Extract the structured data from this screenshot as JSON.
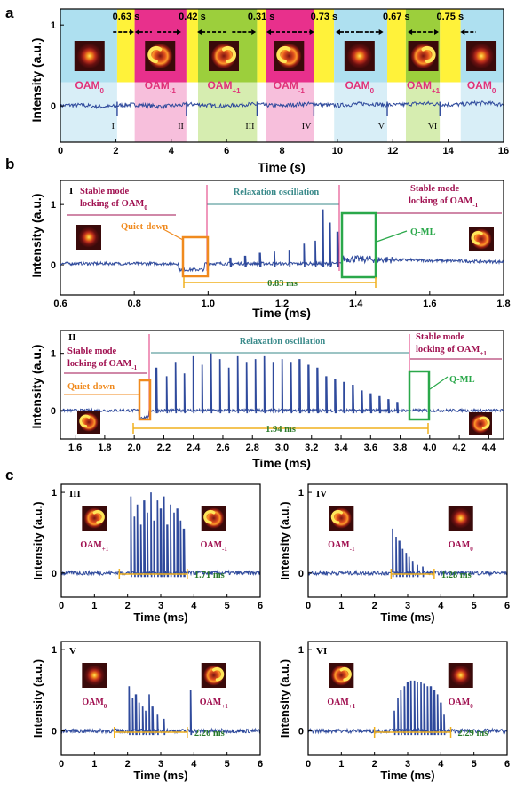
{
  "colors": {
    "trace": "#2f4a9c",
    "sky": "#aee0f0",
    "magenta": "#e8308c",
    "pink": "#f7bfdc",
    "yellow": "#fff23a",
    "green": "#9ccf3c",
    "lightgreen": "#d6edb0",
    "orange": "#f08a1e",
    "q_ml_box": "#2aa84a",
    "teal": "#3a8a8a",
    "magenta_text": "#a01050"
  },
  "panel_a": {
    "label": "a",
    "xlabel": "Time (s)",
    "ylabel": "Intensity (a.u.)",
    "x_ticks": [
      "0",
      "2",
      "4",
      "6",
      "8",
      "10",
      "12",
      "14",
      "16"
    ],
    "y_ticks": [
      "0",
      "1"
    ],
    "durations": [
      "0.63 s",
      "0.42 s",
      "0.31 s",
      "0.73 s",
      "0.67 s",
      "0.75 s"
    ],
    "transitions": [
      "I",
      "II",
      "III",
      "IV",
      "V",
      "VI"
    ],
    "modes": [
      {
        "main": "OAM",
        "sub": "0"
      },
      {
        "main": "OAM",
        "sub": "-1"
      },
      {
        "main": "OAM",
        "sub": "+1"
      },
      {
        "main": "OAM",
        "sub": "-1"
      },
      {
        "main": "OAM",
        "sub": "0"
      },
      {
        "main": "OAM",
        "sub": "+1"
      },
      {
        "main": "OAM",
        "sub": "0"
      }
    ]
  },
  "panel_b": {
    "label": "b",
    "top": {
      "roman": "I",
      "xlabel": "Time (ms)",
      "ylabel": "Intensity (a.u.)",
      "x_ticks": [
        "0.6",
        "0.8",
        "1.0",
        "1.2",
        "1.4",
        "1.6",
        "1.8"
      ],
      "y_ticks": [
        "0",
        "1"
      ],
      "left_note": [
        "Stable mode",
        "locking of OAM",
        "0"
      ],
      "right_note": [
        "Stable mode",
        "locking of OAM",
        "-1"
      ],
      "relax": "Relaxation oscillation",
      "quiet": "Quiet-down",
      "qml": "Q-ML",
      "span": "0.83 ms"
    },
    "bottom": {
      "roman": "II",
      "xlabel": "Time (ms)",
      "ylabel": "Intensity (a.u.)",
      "x_ticks": [
        "1.6",
        "1.8",
        "2.0",
        "2.2",
        "2.4",
        "2.6",
        "2.8",
        "3.0",
        "3.2",
        "3.4",
        "3.6",
        "3.8",
        "4.0",
        "4.2",
        "4.4"
      ],
      "y_ticks": [
        "0",
        "1"
      ],
      "left_note": [
        "Stable mode",
        "locking of OAM",
        "-1"
      ],
      "right_note": [
        "Stable mode",
        "locking of OAM",
        "+1"
      ],
      "relax": "Relaxation oscillation",
      "quiet": "Quiet-down",
      "qml": "Q-ML",
      "span": "1.94 ms"
    }
  },
  "panel_c": {
    "label": "c",
    "xlabel": "Time (ms)",
    "ylabel": "Intensity (a.u.)",
    "x_ticks": [
      "0",
      "1",
      "2",
      "3",
      "4",
      "5",
      "6"
    ],
    "y_ticks": [
      "0",
      "1"
    ],
    "subplots": [
      {
        "roman": "III",
        "left": {
          "main": "OAM",
          "sub": "+1"
        },
        "right": {
          "main": "OAM",
          "sub": "-1"
        },
        "span": "1.71 ms"
      },
      {
        "roman": "IV",
        "left": {
          "main": "OAM",
          "sub": "-1"
        },
        "right": {
          "main": "OAM",
          "sub": "0"
        },
        "span": "1.28 ms"
      },
      {
        "roman": "V",
        "left": {
          "main": "OAM",
          "sub": "0"
        },
        "right": {
          "main": "OAM",
          "sub": "+1"
        },
        "span": "2.20 ms"
      },
      {
        "roman": "VI",
        "left": {
          "main": "OAM",
          "sub": "+1"
        },
        "right": {
          "main": "OAM",
          "sub": "0"
        },
        "span": "2.29 ms"
      }
    ]
  },
  "chart_data": [
    {
      "type": "line",
      "panel": "a",
      "xlabel": "Time (s)",
      "ylabel": "Intensity (a.u.)",
      "xlim": [
        0,
        16
      ],
      "ylim": [
        -0.5,
        1.2
      ],
      "transition_times_s": [
        2.05,
        4.55,
        7.1,
        9.15,
        11.8,
        13.7
      ],
      "series": [
        {
          "x": [
            0,
            2.05,
            2.1,
            4.55,
            4.6,
            7.1,
            7.15,
            9.15,
            9.2,
            11.8,
            11.85,
            13.7,
            13.75,
            16
          ],
          "y": [
            0,
            0,
            0.05,
            0.02,
            0.02,
            0.03,
            -0.02,
            0.04,
            0.06,
            0.0,
            0.02,
            0.03,
            0.02,
            0.02
          ]
        }
      ]
    },
    {
      "type": "line",
      "panel": "b-I",
      "xlabel": "Time (ms)",
      "ylabel": "Intensity (a.u.)",
      "xlim": [
        0.6,
        1.8
      ],
      "ylim": [
        -0.5,
        1.4
      ],
      "peaks_x": [
        1.06,
        1.1,
        1.14,
        1.18,
        1.22,
        1.26,
        1.29,
        1.31,
        1.33,
        1.35
      ],
      "peaks_y": [
        0.12,
        0.15,
        0.2,
        0.22,
        0.25,
        0.35,
        0.4,
        0.92,
        0.7,
        0.55
      ]
    },
    {
      "type": "line",
      "panel": "b-II",
      "xlabel": "Time (ms)",
      "ylabel": "Intensity (a.u.)",
      "xlim": [
        1.5,
        4.5
      ],
      "ylim": [
        -0.5,
        1.4
      ],
      "peaks_x": [
        2.15,
        2.22,
        2.28,
        2.34,
        2.4,
        2.46,
        2.52,
        2.58,
        2.64,
        2.7,
        2.76,
        2.82,
        2.88,
        2.94,
        3.0,
        3.06,
        3.12,
        3.18,
        3.24,
        3.3,
        3.36,
        3.42,
        3.48,
        3.54,
        3.6,
        3.66,
        3.72,
        3.78
      ],
      "peaks_y": [
        0.75,
        0.6,
        0.85,
        0.65,
        0.95,
        0.8,
        1.0,
        0.9,
        0.75,
        0.95,
        0.85,
        0.9,
        0.95,
        0.85,
        0.9,
        0.85,
        0.9,
        0.8,
        0.75,
        0.6,
        0.55,
        0.5,
        0.45,
        0.35,
        0.3,
        0.25,
        0.2,
        0.15
      ]
    },
    {
      "type": "line",
      "panel": "c-III",
      "xlabel": "Time (ms)",
      "ylabel": "Intensity (a.u.)",
      "xlim": [
        0,
        6
      ],
      "ylim": [
        -0.3,
        1.1
      ],
      "peaks_x": [
        2.1,
        2.2,
        2.3,
        2.4,
        2.5,
        2.6,
        2.7,
        2.8,
        2.9,
        3.0,
        3.1,
        3.2,
        3.3,
        3.4,
        3.5,
        3.6,
        3.7
      ],
      "peaks_y": [
        0.95,
        0.7,
        0.85,
        0.6,
        0.9,
        0.75,
        1.0,
        0.65,
        0.9,
        0.8,
        0.95,
        0.6,
        0.85,
        0.75,
        0.8,
        0.65,
        0.55
      ]
    },
    {
      "type": "line",
      "panel": "c-IV",
      "xlabel": "Time (ms)",
      "ylabel": "Intensity (a.u.)",
      "xlim": [
        0,
        6
      ],
      "ylim": [
        -0.3,
        1.1
      ],
      "peaks_x": [
        2.55,
        2.65,
        2.75,
        2.85,
        2.95,
        3.05,
        3.15,
        3.3,
        3.45
      ],
      "peaks_y": [
        0.55,
        0.45,
        0.4,
        0.3,
        0.25,
        0.2,
        0.15,
        0.1,
        0.08
      ]
    },
    {
      "type": "line",
      "panel": "c-V",
      "xlabel": "Time (ms)",
      "ylabel": "Intensity (a.u.)",
      "xlim": [
        0,
        6
      ],
      "ylim": [
        -0.3,
        1.1
      ],
      "peaks_x": [
        2.05,
        2.15,
        2.25,
        2.35,
        2.45,
        2.55,
        2.65,
        2.75,
        2.9,
        3.1,
        3.9
      ],
      "peaks_y": [
        0.55,
        0.4,
        0.45,
        0.35,
        0.3,
        0.25,
        0.45,
        0.3,
        0.2,
        0.15,
        0.5
      ]
    },
    {
      "type": "line",
      "panel": "c-VI",
      "xlabel": "Time (ms)",
      "ylabel": "Intensity (a.u.)",
      "xlim": [
        0,
        6
      ],
      "ylim": [
        -0.3,
        1.1
      ],
      "peaks_x": [
        2.6,
        2.7,
        2.8,
        2.9,
        3.0,
        3.1,
        3.2,
        3.3,
        3.4,
        3.5,
        3.6,
        3.7,
        3.8,
        3.9,
        4.0,
        4.1
      ],
      "peaks_y": [
        0.25,
        0.4,
        0.5,
        0.55,
        0.6,
        0.62,
        0.62,
        0.6,
        0.6,
        0.58,
        0.55,
        0.55,
        0.5,
        0.45,
        0.35,
        0.2
      ]
    }
  ]
}
